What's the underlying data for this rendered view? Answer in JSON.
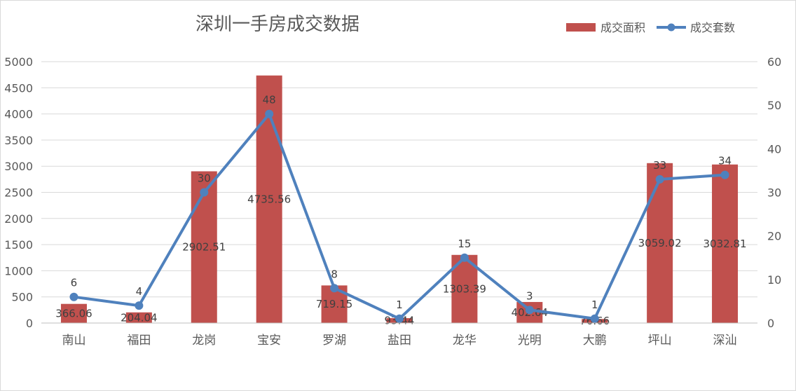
{
  "chart_data": {
    "type": "bar+line",
    "title": "深圳一手房成交数据",
    "categories": [
      "南山",
      "福田",
      "龙岗",
      "宝安",
      "罗湖",
      "盐田",
      "龙华",
      "光明",
      "大鹏",
      "坪山",
      "深汕"
    ],
    "series": [
      {
        "name": "成交面积",
        "type": "bar",
        "axis": "left",
        "color": "#c0504d",
        "values": [
          366.06,
          204.04,
          2902.51,
          4735.56,
          719.15,
          93.44,
          1303.39,
          402.64,
          76.66,
          3059.02,
          3032.81
        ],
        "labels": [
          "366.06",
          "204.04",
          "2902.51",
          "4735.56",
          "719.15",
          "93.44",
          "1303.39",
          "402.64",
          "76.66",
          "3059.02",
          "3032.81"
        ]
      },
      {
        "name": "成交套数",
        "type": "line",
        "axis": "right",
        "color": "#4f81bd",
        "values": [
          6,
          4,
          30,
          48,
          8,
          1,
          15,
          3,
          1,
          33,
          34
        ],
        "labels": [
          "6",
          "4",
          "30",
          "48",
          "8",
          "1",
          "15",
          "3",
          "1",
          "33",
          "34"
        ]
      }
    ],
    "y_left": {
      "min": 0,
      "max": 5000,
      "ticks": [
        0,
        500,
        1000,
        1500,
        2000,
        2500,
        3000,
        3500,
        4000,
        4500,
        5000
      ]
    },
    "y_right": {
      "min": 0,
      "max": 60,
      "ticks": [
        0,
        10,
        20,
        30,
        40,
        50,
        60
      ]
    },
    "grid": true,
    "legend_position": "top-right",
    "xlabel": "",
    "ylabel": ""
  }
}
